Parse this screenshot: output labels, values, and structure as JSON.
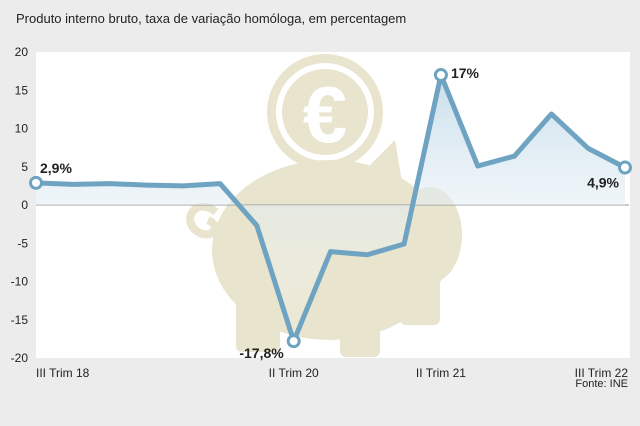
{
  "chart_data": {
    "type": "area",
    "title": "Produto interno bruto, taxa de variação homóloga, em percentagem",
    "source": "Fonte: INE",
    "xlabel": "",
    "ylabel": "",
    "ylim": [
      -20,
      20
    ],
    "yticks": [
      20,
      15,
      10,
      5,
      0,
      -5,
      -10,
      -15,
      -20
    ],
    "x": [
      "III Trim 18",
      "IV Trim 18",
      "I Trim 19",
      "II Trim 19",
      "III Trim 19",
      "IV Trim 19",
      "I Trim 20",
      "II Trim 20",
      "III Trim 20",
      "IV Trim 20",
      "I Trim 21",
      "II Trim 21",
      "III Trim 21",
      "IV Trim 21",
      "I Trim 22",
      "II Trim 22",
      "III Trim 22"
    ],
    "xtick_labels": [
      "III Trim 18",
      "II Trim 20",
      "II Trim 21",
      "III Trim 22"
    ],
    "series": [
      {
        "values": [
          2.9,
          2.7,
          2.8,
          2.6,
          2.5,
          2.8,
          -2.7,
          -17.8,
          -6.1,
          -6.5,
          -5.1,
          17.0,
          5.1,
          6.4,
          11.9,
          7.4,
          4.9
        ]
      }
    ],
    "annotations": [
      {
        "x": "III Trim 18",
        "y": 2.9,
        "text": "2,9%"
      },
      {
        "x": "II Trim 20",
        "y": -17.8,
        "text": "-17,8%"
      },
      {
        "x": "II Trim 21",
        "y": 17.0,
        "text": "17%"
      },
      {
        "x": "III Trim 22",
        "y": 4.9,
        "text": "4,9%"
      }
    ],
    "grid": false,
    "colors": {
      "line": "#6ea3c1",
      "area_top": "#c6dcea",
      "plot_bg": "#ffffff",
      "zero_line": "#999999",
      "piggy": "#e9e4cd"
    },
    "decoration": "piggy-bank-with-euro-coin"
  }
}
